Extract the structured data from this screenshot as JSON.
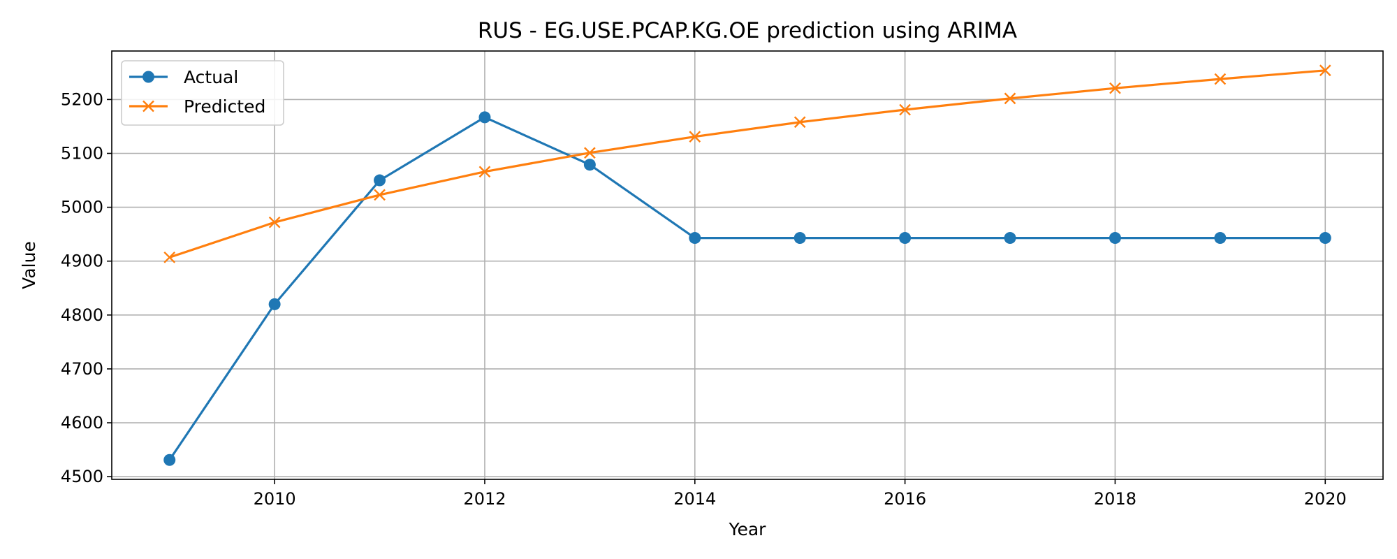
{
  "chart_data": {
    "type": "line",
    "title": "RUS - EG.USE.PCAP.KG.OE prediction using ARIMA",
    "xlabel": "Year",
    "ylabel": "Value",
    "x": [
      2009,
      2010,
      2011,
      2012,
      2013,
      2014,
      2015,
      2016,
      2017,
      2018,
      2019,
      2020
    ],
    "xlim": [
      2008.45,
      2020.55
    ],
    "ylim": [
      4495,
      5290
    ],
    "x_ticks": [
      2010,
      2012,
      2014,
      2016,
      2018,
      2020
    ],
    "y_ticks": [
      4500,
      4600,
      4700,
      4800,
      4900,
      5000,
      5100,
      5200
    ],
    "grid": true,
    "legend_position": "upper-left",
    "series": [
      {
        "name": "Actual",
        "color": "#1f77b4",
        "marker": "circle",
        "values": [
          4531,
          4820,
          5050,
          5167,
          5079,
          4943,
          4943,
          4943,
          4943,
          4943,
          4943,
          4943
        ]
      },
      {
        "name": "Predicted",
        "color": "#ff7f0e",
        "marker": "x",
        "values": [
          4907,
          4972,
          5023,
          5066,
          5101,
          5131,
          5158,
          5181,
          5202,
          5221,
          5238,
          5254
        ]
      }
    ]
  }
}
